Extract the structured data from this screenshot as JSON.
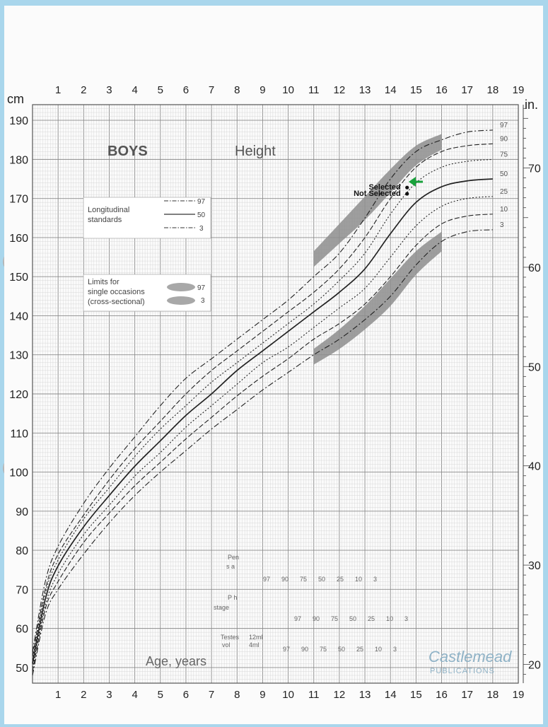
{
  "chart_data": {
    "type": "line",
    "title": "BOYS",
    "subtitle": "Height",
    "xlabel": "Age, years",
    "left_unit": "cm",
    "right_unit": "in.",
    "xlim": [
      0,
      19
    ],
    "ylim": [
      46,
      194
    ],
    "x_ticks": [
      "1",
      "2",
      "3",
      "4",
      "5",
      "6",
      "7",
      "8",
      "9",
      "10",
      "11",
      "12",
      "13",
      "14",
      "15",
      "16",
      "17",
      "18",
      "19"
    ],
    "y_ticks": [
      "50",
      "60",
      "70",
      "80",
      "90",
      "100",
      "110",
      "120",
      "130",
      "140",
      "150",
      "160",
      "170",
      "180",
      "190"
    ],
    "right_ticks": [
      "20",
      "30",
      "40",
      "50",
      "60",
      "70"
    ],
    "grid": true,
    "percentile_labels": [
      "97",
      "90",
      "75",
      "50",
      "25",
      "10",
      "3"
    ],
    "series": [
      {
        "name": "97",
        "style": "dash-dot",
        "x": [
          0,
          0.5,
          1,
          2,
          3,
          4,
          5,
          6,
          7,
          8,
          9,
          10,
          11,
          12,
          13,
          14,
          15,
          16,
          17,
          18
        ],
        "values": [
          54,
          72,
          81,
          92,
          101,
          109,
          117,
          124,
          129,
          134,
          139,
          144,
          150,
          156,
          165,
          175,
          182,
          185,
          187,
          187.5
        ]
      },
      {
        "name": "90",
        "style": "dashed",
        "x": [
          0,
          0.5,
          1,
          2,
          3,
          4,
          5,
          6,
          7,
          8,
          9,
          10,
          11,
          12,
          13,
          14,
          15,
          16,
          17,
          18
        ],
        "values": [
          53,
          70,
          79,
          89,
          98,
          106,
          113,
          120,
          126,
          131,
          136,
          141,
          146,
          152,
          160,
          170,
          178,
          182,
          183.5,
          184
        ]
      },
      {
        "name": "75",
        "style": "dotted",
        "x": [
          0,
          0.5,
          1,
          2,
          3,
          4,
          5,
          6,
          7,
          8,
          9,
          10,
          11,
          12,
          13,
          14,
          15,
          16,
          17,
          18
        ],
        "values": [
          52,
          69,
          77.5,
          88,
          96,
          104,
          111,
          117,
          123,
          128,
          133,
          138,
          143,
          149,
          156,
          166,
          174,
          178,
          179.5,
          180
        ]
      },
      {
        "name": "50",
        "style": "solid",
        "x": [
          0,
          0.5,
          1,
          2,
          3,
          4,
          5,
          6,
          7,
          8,
          9,
          10,
          11,
          12,
          13,
          14,
          15,
          16,
          17,
          18
        ],
        "values": [
          51,
          67.5,
          76,
          86,
          94,
          101.5,
          108,
          114.5,
          120,
          126,
          131,
          136,
          141,
          146,
          152,
          161,
          169,
          173,
          174.5,
          175
        ]
      },
      {
        "name": "25",
        "style": "dotted",
        "x": [
          0,
          0.5,
          1,
          2,
          3,
          4,
          5,
          6,
          7,
          8,
          9,
          10,
          11,
          12,
          13,
          14,
          15,
          16,
          17,
          18
        ],
        "values": [
          50,
          66,
          74,
          84,
          91.5,
          99,
          105,
          111.5,
          117,
          122.5,
          128,
          132,
          137,
          142,
          147,
          155,
          163,
          168,
          170,
          170.5
        ]
      },
      {
        "name": "10",
        "style": "dashed",
        "x": [
          0,
          0.5,
          1,
          2,
          3,
          4,
          5,
          6,
          7,
          8,
          9,
          10,
          11,
          12,
          13,
          14,
          15,
          16,
          17,
          18
        ],
        "values": [
          49,
          65,
          72,
          82,
          89.5,
          96.5,
          102.5,
          108.5,
          114,
          119.5,
          124.5,
          129,
          134,
          138,
          143,
          150,
          158,
          163.5,
          165.5,
          166
        ]
      },
      {
        "name": "3",
        "style": "dash-dot",
        "x": [
          0,
          0.5,
          1,
          2,
          3,
          4,
          5,
          6,
          7,
          8,
          9,
          10,
          11,
          12,
          13,
          14,
          15,
          16,
          17,
          18
        ],
        "values": [
          48,
          63.5,
          70,
          79,
          87,
          94,
          100,
          105.5,
          111,
          116,
          121,
          125.5,
          130,
          134,
          139,
          145,
          153,
          159,
          161.5,
          162
        ]
      }
    ],
    "bands": [
      {
        "name": "97",
        "x": [
          11,
          12,
          13,
          14,
          15,
          16
        ],
        "lower": [
          154,
          160,
          166,
          173,
          180,
          184
        ],
        "upper": [
          155,
          162,
          169,
          176,
          182,
          185
        ]
      },
      {
        "name": "3",
        "x": [
          11,
          12,
          13,
          14,
          15,
          16
        ],
        "lower": [
          129,
          133,
          138,
          144,
          152,
          158
        ],
        "upper": [
          130,
          135,
          141,
          148,
          155,
          160
        ]
      }
    ],
    "points": [
      {
        "label": "Selected",
        "x": 14.65,
        "y": 172.8
      },
      {
        "label": "Not Selected",
        "x": 14.65,
        "y": 171.2
      }
    ],
    "legend": {
      "longitudinal_title": "Longitudinal standards",
      "longitudinal_entries": [
        "97",
        "50",
        "3"
      ],
      "limits_title": "Limits for single occasions (cross-sectional)",
      "limits_entries": [
        "97",
        "3"
      ]
    },
    "puberty_labels": {
      "pen": "Pen",
      "s_a": "s a",
      "pubic_hair": "P h",
      "stage": "stage",
      "testes": "Testes",
      "vol": "vol",
      "vol_12": "12ml",
      "vol_4": "4ml",
      "percentiles": [
        "97",
        "90",
        "75",
        "50",
        "25",
        "10",
        "3"
      ]
    },
    "publisher": "Castlemead",
    "publisher_sub": "PUBLICATIONS"
  },
  "colors": {
    "background": "#a9d6ec",
    "paper": "#fbfbfb",
    "grid_minor": "#d0d0d0",
    "grid_major": "#8c8c8c",
    "ink": "#222222",
    "band": "#8d8d8d",
    "arrow": "#1aa23c",
    "publisher": "#8fb2c6"
  }
}
